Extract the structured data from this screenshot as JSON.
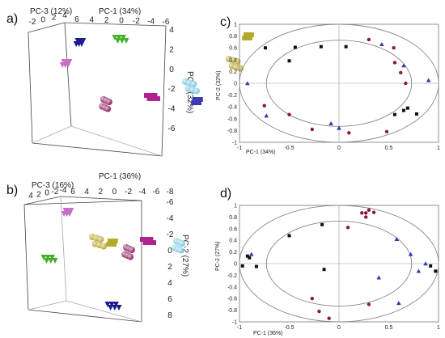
{
  "panels": {
    "a": {
      "label": "a)"
    },
    "b": {
      "label": "b)"
    },
    "c": {
      "label": "c)"
    },
    "d": {
      "label": "d)"
    }
  },
  "colors": {
    "purple": "#8B1A5B",
    "magenta": "#B0238F",
    "navy": "#1C1C8C",
    "blue": "#3B3BB8",
    "green": "#43B02A",
    "olive": "#B8A82A",
    "lightblue": "#7CC9DF",
    "pink": "#C76EC7",
    "black": "#111111",
    "maroon": "#8B1A3C",
    "royal": "#2A3BB0",
    "grid": "#999999"
  },
  "chart_data": [
    {
      "id": "a",
      "type": "scatter",
      "projection": "3d",
      "axes": {
        "pc1": {
          "label": "PC-1 (34%)",
          "ticks": [
            "6",
            "4",
            "2",
            "0",
            "-2",
            "-4",
            "-6"
          ]
        },
        "pc3": {
          "label": "PC-3 (12%)",
          "ticks": [
            "-2",
            "0",
            "2",
            "4"
          ]
        },
        "pc2": {
          "label": "PC-2 (32%)",
          "ticks": [
            "4",
            "2",
            "0",
            "-2",
            "-4",
            "-6"
          ]
        }
      },
      "clusters": [
        {
          "color": "navy",
          "marker": "triangle",
          "x": 100,
          "y": 52
        },
        {
          "color": "green",
          "marker": "triangle",
          "x": 146,
          "y": 48
        },
        {
          "color": "olive",
          "marker": "square",
          "x": 308,
          "y": 45
        },
        {
          "color": "olive",
          "marker": "sphere",
          "x": 287,
          "y": 75
        },
        {
          "color": "pink",
          "marker": "triangle",
          "x": 83,
          "y": 78
        },
        {
          "color": "lightblue",
          "marker": "sphere",
          "x": 233,
          "y": 103
        },
        {
          "color": "purple",
          "marker": "sphere",
          "x": 132,
          "y": 125
        },
        {
          "color": "magenta",
          "marker": "square",
          "x": 185,
          "y": 120
        },
        {
          "color": "blue",
          "marker": "square",
          "x": 245,
          "y": 125
        }
      ]
    },
    {
      "id": "b",
      "type": "scatter",
      "projection": "3d",
      "axes": {
        "pc1": {
          "label": "PC-1 (36%)",
          "ticks": [
            "6",
            "4",
            "2",
            "0",
            "-2",
            "-4",
            "-6",
            "-8"
          ]
        },
        "pc3": {
          "label": "PC-3 (16%)",
          "ticks": [
            "4",
            "2",
            "0",
            "-2",
            "-4"
          ]
        },
        "pc2": {
          "label": "PC-2 (27%)",
          "ticks": [
            "-6",
            "-4",
            "-2",
            "0",
            "2",
            "4",
            "6",
            "8"
          ]
        }
      },
      "clusters": [
        {
          "color": "pink",
          "marker": "triangle",
          "x": 85,
          "y": 262
        },
        {
          "color": "olive",
          "marker": "sphere",
          "x": 118,
          "y": 295
        },
        {
          "color": "olive",
          "marker": "square",
          "x": 140,
          "y": 300
        },
        {
          "color": "green",
          "marker": "triangle",
          "x": 58,
          "y": 320
        },
        {
          "color": "purple",
          "marker": "sphere",
          "x": 160,
          "y": 308
        },
        {
          "color": "magenta",
          "marker": "square",
          "x": 180,
          "y": 298
        },
        {
          "color": "lightblue",
          "marker": "sphere",
          "x": 222,
          "y": 300
        },
        {
          "color": "navy",
          "marker": "triangle",
          "x": 137,
          "y": 378
        }
      ]
    },
    {
      "id": "c",
      "type": "scatter",
      "xlabel": "PC-1 (34%)",
      "ylabel": "PC-2 (32%)",
      "xlim": [
        -1,
        1
      ],
      "ylim": [
        -1,
        1
      ],
      "xticks": [
        "-1",
        "-0.5",
        "0",
        "0.5",
        "1"
      ],
      "yticks": [
        "1",
        "0.8",
        "0.6",
        "0.4",
        "0.2",
        "0",
        "-0.2",
        "-0.4",
        "-0.6",
        "-0.8",
        "-1"
      ],
      "circles": [
        1,
        0.73
      ],
      "series": [
        {
          "color": "black",
          "marker": "square",
          "points": [
            [
              -0.74,
              0.6
            ],
            [
              -0.44,
              0.61
            ],
            [
              -0.18,
              0.62
            ],
            [
              0.07,
              0.62
            ],
            [
              -0.5,
              0.38
            ],
            [
              0.69,
              -0.42
            ],
            [
              0.65,
              -0.46
            ],
            [
              0.78,
              -0.52
            ],
            [
              0.56,
              -0.53
            ]
          ]
        },
        {
          "color": "maroon",
          "marker": "circle",
          "points": [
            [
              0.3,
              0.74
            ],
            [
              0.55,
              0.6
            ],
            [
              0.56,
              0.35
            ],
            [
              0.62,
              0.18
            ],
            [
              0.67,
              0.0
            ],
            [
              -0.75,
              -0.38
            ],
            [
              -0.5,
              -0.53
            ],
            [
              -0.27,
              -0.78
            ],
            [
              0.1,
              -0.84
            ],
            [
              0.48,
              -0.82
            ]
          ]
        },
        {
          "color": "royal",
          "marker": "triangle",
          "points": [
            [
              -0.92,
              0.0
            ],
            [
              0.43,
              0.66
            ],
            [
              0.65,
              0.3
            ],
            [
              0.9,
              0.05
            ],
            [
              -0.73,
              -0.55
            ],
            [
              -0.08,
              -0.68
            ],
            [
              0.0,
              -0.76
            ]
          ]
        }
      ]
    },
    {
      "id": "d",
      "type": "scatter",
      "xlabel": "PC-1 (36%)",
      "ylabel": "PC-2 (27%)",
      "xlim": [
        -1,
        1
      ],
      "ylim": [
        -1,
        1
      ],
      "xticks": [
        "-1",
        "-0.5",
        "0",
        "0.5",
        "1"
      ],
      "yticks": [
        "1",
        "0.8",
        "0.6",
        "0.4",
        "0.2",
        "0",
        "-0.2",
        "-0.4",
        "-0.6",
        "-0.8",
        "-1"
      ],
      "circles": [
        1,
        0.73
      ],
      "series": [
        {
          "color": "black",
          "marker": "square",
          "points": [
            [
              -0.17,
              0.67
            ],
            [
              -0.5,
              0.48
            ],
            [
              -0.92,
              0.13
            ],
            [
              -0.83,
              -0.05
            ],
            [
              -0.97,
              -0.04
            ],
            [
              -0.9,
              0.1
            ],
            [
              -0.15,
              -0.1
            ],
            [
              0.92,
              -0.04
            ],
            [
              0.97,
              -0.13
            ]
          ]
        },
        {
          "color": "maroon",
          "marker": "circle",
          "points": [
            [
              0.23,
              0.87
            ],
            [
              0.27,
              0.87
            ],
            [
              0.3,
              0.92
            ],
            [
              0.35,
              0.88
            ],
            [
              0.27,
              0.8
            ],
            [
              0.09,
              0.62
            ],
            [
              -0.27,
              -0.6
            ],
            [
              -0.2,
              -0.82
            ],
            [
              -0.1,
              -0.94
            ],
            [
              0.3,
              -0.7
            ]
          ]
        },
        {
          "color": "royal",
          "marker": "triangle",
          "points": [
            [
              0.58,
              0.42
            ],
            [
              0.72,
              0.16
            ],
            [
              -0.88,
              0.16
            ],
            [
              0.87,
              0.0
            ],
            [
              0.4,
              -0.24
            ],
            [
              0.8,
              -0.13
            ],
            [
              0.6,
              -0.68
            ]
          ]
        }
      ]
    }
  ]
}
